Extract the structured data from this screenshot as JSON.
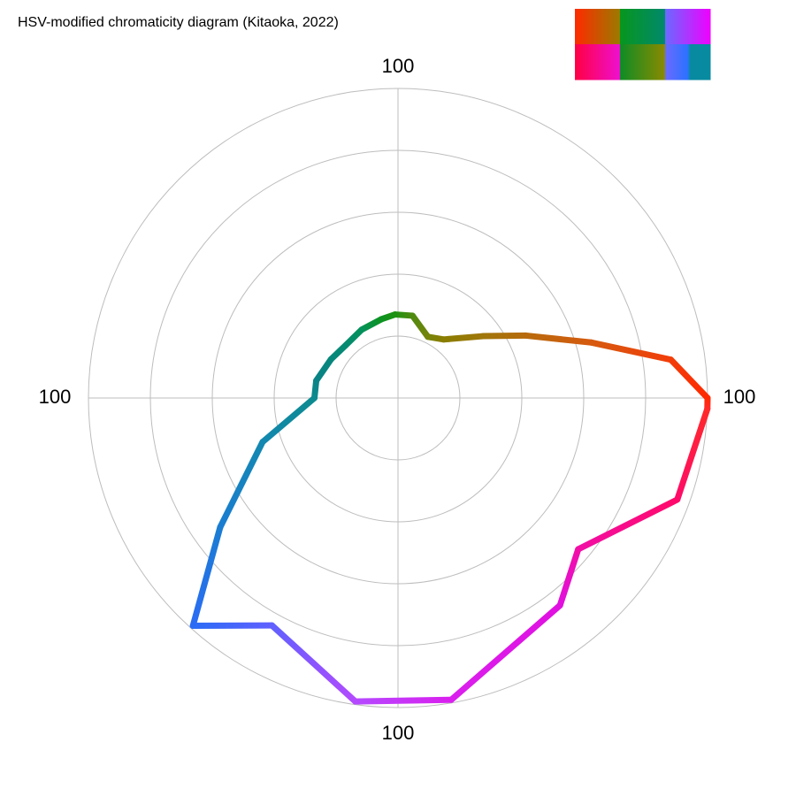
{
  "chart_data": {
    "type": "polar-line",
    "title": "HSV-modified chromaticity diagram (Kitaoka, 2022)",
    "radial_max": 100,
    "grid": true,
    "ring_count": 5,
    "axis_labels": {
      "top": "100",
      "left": "100",
      "right": "100",
      "bottom": "100"
    },
    "angle_convention": "degrees counter-clockwise from right, 0 at right",
    "curve_points": [
      {
        "angle": 0,
        "r": 100,
        "color": "#ff2a00"
      },
      {
        "angle": 8,
        "r": 89,
        "color": "#f23d0a"
      },
      {
        "angle": 16,
        "r": 65,
        "color": "#d65a0f"
      },
      {
        "angle": 26,
        "r": 46,
        "color": "#b86a0c"
      },
      {
        "angle": 36,
        "r": 34,
        "color": "#a0760a"
      },
      {
        "angle": 52,
        "r": 24,
        "color": "#8a7d00"
      },
      {
        "angle": 64,
        "r": 22,
        "color": "#76840a"
      },
      {
        "angle": 80,
        "r": 27,
        "color": "#4f8a10"
      },
      {
        "angle": 92,
        "r": 27,
        "color": "#1f9212"
      },
      {
        "angle": 102,
        "r": 26,
        "color": "#0c9320"
      },
      {
        "angle": 118,
        "r": 25,
        "color": "#04925a"
      },
      {
        "angle": 135,
        "r": 24,
        "color": "#058a72"
      },
      {
        "angle": 150,
        "r": 25,
        "color": "#07877c"
      },
      {
        "angle": 168,
        "r": 27,
        "color": "#098386"
      },
      {
        "angle": 180,
        "r": 27,
        "color": "#0c8a8f"
      },
      {
        "angle": 198,
        "r": 46,
        "color": "#1388b0"
      },
      {
        "angle": 216,
        "r": 71,
        "color": "#1a7dd2"
      },
      {
        "angle": 228,
        "r": 99,
        "color": "#2b6cf5"
      },
      {
        "angle": 241,
        "r": 84,
        "color": "#6060ff"
      },
      {
        "angle": 262,
        "r": 99,
        "color": "#b44aff"
      },
      {
        "angle": 280,
        "r": 99,
        "color": "#da1fee"
      },
      {
        "angle": 308,
        "r": 85,
        "color": "#e010e0"
      },
      {
        "angle": 320,
        "r": 76,
        "color": "#f20ea6"
      },
      {
        "angle": 340,
        "r": 96,
        "color": "#ff0a6a"
      },
      {
        "angle": 358,
        "r": 100,
        "color": "#ff2a2a"
      }
    ],
    "swatch_grid": [
      [
        {
          "from": "#ff2a00",
          "to": "#9a7b00"
        },
        {
          "from": "#07961e",
          "to": "#01896c"
        },
        {
          "from": "#6a6aff",
          "to": "#f000ff"
        }
      ],
      [
        {
          "from": "#ff0044",
          "to": "#ee10d0"
        },
        {
          "from": "#0e8c25",
          "to": "#8b8a00"
        },
        {
          "from": "#6a6aff",
          "to": "#2b72ff",
          "third": "#088aa0"
        }
      ]
    ]
  }
}
